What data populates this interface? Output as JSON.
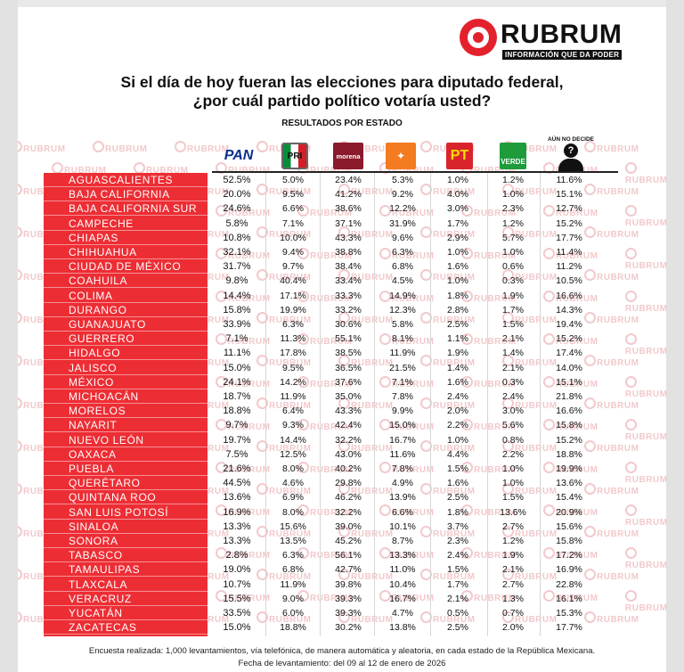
{
  "brand": {
    "name": "RUBRUM",
    "tagline": "INFORMACIÓN QUE DA PODER",
    "watermark": "RUBRUM",
    "accent_color": "#e3212c"
  },
  "chart_data": {
    "type": "table",
    "title": "Si el día de hoy fueran las elecciones para diputado federal,\n¿por cuál partido político votaría usted?",
    "subtitle": "RESULTADOS POR ESTADO",
    "columns": [
      {
        "key": "pan",
        "label": "PAN",
        "icon": "pan-logo-icon"
      },
      {
        "key": "pri",
        "label": "PRI",
        "icon": "pri-logo-icon"
      },
      {
        "key": "morena",
        "label": "morena",
        "icon": "morena-logo-icon"
      },
      {
        "key": "mc",
        "label": "MC",
        "icon": "movimiento-ciudadano-logo-icon"
      },
      {
        "key": "pt",
        "label": "PT",
        "icon": "pt-logo-icon"
      },
      {
        "key": "verde",
        "label": "VERDE",
        "icon": "verde-logo-icon"
      },
      {
        "key": "no_decide",
        "label": "AÚN NO DECIDE",
        "icon": "undecided-person-icon"
      }
    ],
    "rows": [
      {
        "state": "AGUASCALIENTES",
        "values": [
          "52.5%",
          "5.0%",
          "23.4%",
          "5.3%",
          "1.0%",
          "1.2%",
          "11.6%"
        ]
      },
      {
        "state": "BAJA CALIFORNIA",
        "values": [
          "20.0%",
          "9.5%",
          "41.2%",
          "9.2%",
          "4.0%",
          "1.0%",
          "15.1%"
        ]
      },
      {
        "state": "BAJA CALIFORNIA SUR",
        "values": [
          "24.6%",
          "6.6%",
          "38.6%",
          "12.2%",
          "3.0%",
          "2.3%",
          "12.7%"
        ]
      },
      {
        "state": "CAMPECHE",
        "values": [
          "5.8%",
          "7.1%",
          "37.1%",
          "31.9%",
          "1.7%",
          "1.2%",
          "15.2%"
        ]
      },
      {
        "state": "CHIAPAS",
        "values": [
          "10.8%",
          "10.0%",
          "43.3%",
          "9.6%",
          "2.9%",
          "5.7%",
          "17.7%"
        ]
      },
      {
        "state": "CHIHUAHUA",
        "values": [
          "32.1%",
          "9.4%",
          "38.8%",
          "6.3%",
          "1.0%",
          "1.0%",
          "11.4%"
        ]
      },
      {
        "state": "CIUDAD DE MÉXICO",
        "values": [
          "31.7%",
          "9.7%",
          "38.4%",
          "6.8%",
          "1.6%",
          "0.6%",
          "11.2%"
        ]
      },
      {
        "state": "COAHUILA",
        "values": [
          "9.8%",
          "40.4%",
          "33.4%",
          "4.5%",
          "1.0%",
          "0.3%",
          "10.5%"
        ]
      },
      {
        "state": "COLIMA",
        "values": [
          "14.4%",
          "17.1%",
          "33.3%",
          "14.9%",
          "1.8%",
          "1.9%",
          "16.6%"
        ]
      },
      {
        "state": "DURANGO",
        "values": [
          "15.8%",
          "19.9%",
          "33.2%",
          "12.3%",
          "2.8%",
          "1.7%",
          "14.3%"
        ]
      },
      {
        "state": "GUANAJUATO",
        "values": [
          "33.9%",
          "6.3%",
          "30.6%",
          "5.8%",
          "2.5%",
          "1.5%",
          "19.4%"
        ]
      },
      {
        "state": "GUERRERO",
        "values": [
          "7.1%",
          "11.3%",
          "55.1%",
          "8.1%",
          "1.1%",
          "2.1%",
          "15.2%"
        ]
      },
      {
        "state": "HIDALGO",
        "values": [
          "11.1%",
          "17.8%",
          "38.5%",
          "11.9%",
          "1.9%",
          "1.4%",
          "17.4%"
        ]
      },
      {
        "state": "JALISCO",
        "values": [
          "15.0%",
          "9.5%",
          "36.5%",
          "21.5%",
          "1.4%",
          "2.1%",
          "14.0%"
        ]
      },
      {
        "state": "MÉXICO",
        "values": [
          "24.1%",
          "14.2%",
          "37.6%",
          "7.1%",
          "1.6%",
          "0.3%",
          "15.1%"
        ]
      },
      {
        "state": "MICHOACÁN",
        "values": [
          "18.7%",
          "11.9%",
          "35.0%",
          "7.8%",
          "2.4%",
          "2.4%",
          "21.8%"
        ]
      },
      {
        "state": "MORELOS",
        "values": [
          "18.8%",
          "6.4%",
          "43.3%",
          "9.9%",
          "2.0%",
          "3.0%",
          "16.6%"
        ]
      },
      {
        "state": "NAYARIT",
        "values": [
          "9.7%",
          "9.3%",
          "42.4%",
          "15.0%",
          "2.2%",
          "5.6%",
          "15.8%"
        ]
      },
      {
        "state": "NUEVO LEÓN",
        "values": [
          "19.7%",
          "14.4%",
          "32.2%",
          "16.7%",
          "1.0%",
          "0.8%",
          "15.2%"
        ]
      },
      {
        "state": "OAXACA",
        "values": [
          "7.5%",
          "12.5%",
          "43.0%",
          "11.6%",
          "4.4%",
          "2.2%",
          "18.8%"
        ]
      },
      {
        "state": "PUEBLA",
        "values": [
          "21.6%",
          "8.0%",
          "40.2%",
          "7.8%",
          "1.5%",
          "1.0%",
          "19.9%"
        ]
      },
      {
        "state": "QUERÉTARO",
        "values": [
          "44.5%",
          "4.6%",
          "29.8%",
          "4.9%",
          "1.6%",
          "1.0%",
          "13.6%"
        ]
      },
      {
        "state": "QUINTANA ROO",
        "values": [
          "13.6%",
          "6.9%",
          "46.2%",
          "13.9%",
          "2.5%",
          "1.5%",
          "15.4%"
        ]
      },
      {
        "state": "SAN LUIS POTOSÍ",
        "values": [
          "16.9%",
          "8.0%",
          "32.2%",
          "6.6%",
          "1.8%",
          "13.6%",
          "20.9%"
        ]
      },
      {
        "state": "SINALOA",
        "values": [
          "13.3%",
          "15.6%",
          "39.0%",
          "10.1%",
          "3.7%",
          "2.7%",
          "15.6%"
        ]
      },
      {
        "state": "SONORA",
        "values": [
          "13.3%",
          "13.5%",
          "45.2%",
          "8.7%",
          "2.3%",
          "1.2%",
          "15.8%"
        ]
      },
      {
        "state": "TABASCO",
        "values": [
          "2.8%",
          "6.3%",
          "56.1%",
          "13.3%",
          "2.4%",
          "1.9%",
          "17.2%"
        ]
      },
      {
        "state": "TAMAULIPAS",
        "values": [
          "19.0%",
          "6.8%",
          "42.7%",
          "11.0%",
          "1.5%",
          "2.1%",
          "16.9%"
        ]
      },
      {
        "state": "TLAXCALA",
        "values": [
          "10.7%",
          "11.9%",
          "39.8%",
          "10.4%",
          "1.7%",
          "2.7%",
          "22.8%"
        ]
      },
      {
        "state": "VERACRUZ",
        "values": [
          "15.5%",
          "9.0%",
          "39.3%",
          "16.7%",
          "2.1%",
          "1.3%",
          "16.1%"
        ]
      },
      {
        "state": "YUCATÁN",
        "values": [
          "33.5%",
          "6.0%",
          "39.3%",
          "4.7%",
          "0.5%",
          "0.7%",
          "15.3%"
        ]
      },
      {
        "state": "ZACATECAS",
        "values": [
          "15.0%",
          "18.8%",
          "30.2%",
          "13.8%",
          "2.5%",
          "2.0%",
          "17.7%"
        ]
      }
    ],
    "state_column_color": "#ed2d34"
  },
  "footer": {
    "line1": "Encuesta realizada: 1,000 levantamientos, vía telefónica, de manera automática y aleatoria, en cada estado de la República Mexicana.",
    "line2": "Fecha de levantamiento: del 09 al 12 de enero de 2026"
  }
}
